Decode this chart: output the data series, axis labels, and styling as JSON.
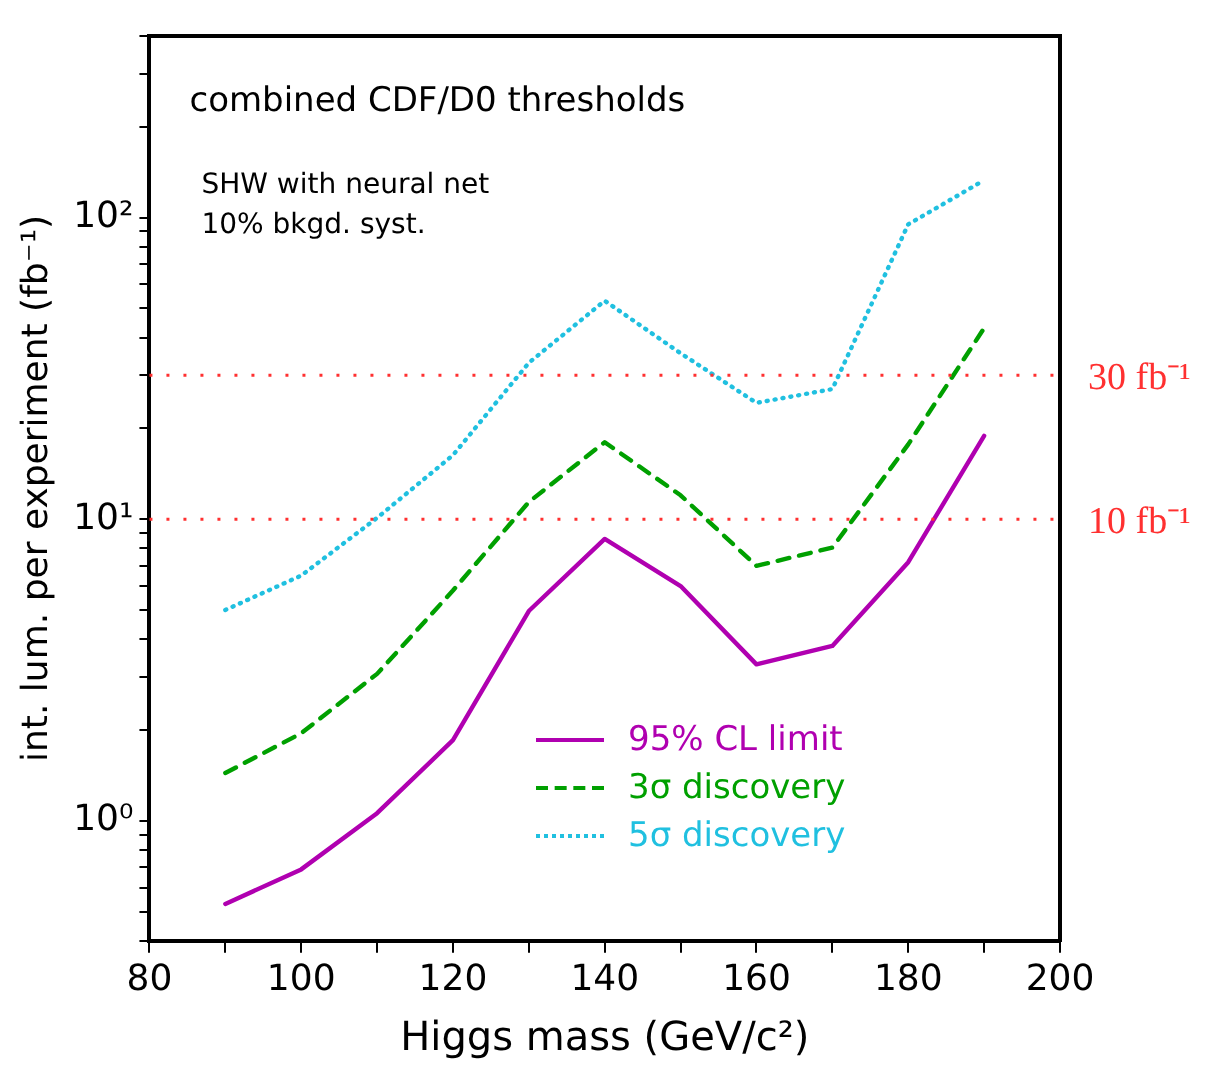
{
  "chart_data": {
    "type": "line",
    "xlabel": "Higgs mass (GeV/c²)",
    "ylabel": "int. lum. per experiment (fb⁻¹)",
    "annotations": [
      "combined CDF/D0 thresholds",
      "SHW with neural net",
      "10% bkgd. syst."
    ],
    "x": [
      90,
      100,
      110,
      120,
      130,
      140,
      150,
      160,
      170,
      180,
      190
    ],
    "series": [
      {
        "name": "95% CL limit",
        "color": "#b000b0",
        "line_style": "solid",
        "values": [
          0.53,
          0.69,
          1.06,
          1.85,
          4.96,
          8.6,
          6.0,
          3.3,
          3.8,
          7.2,
          18.9
        ]
      },
      {
        "name": "3σ discovery",
        "color": "#00a000",
        "line_style": "dashed",
        "values": [
          1.44,
          1.95,
          3.07,
          5.8,
          11.4,
          18,
          12,
          7.0,
          8.05,
          17.7,
          43
        ]
      },
      {
        "name": "5σ discovery",
        "color": "#20c0e0",
        "line_style": "dotted",
        "values": [
          5.0,
          6.5,
          10.1,
          16.3,
          33,
          53,
          35.5,
          24.3,
          27,
          95,
          133
        ]
      }
    ],
    "xlim": [
      80,
      200
    ],
    "xticks": [
      80,
      {
        "value": 90,
        "label": null
      },
      100,
      {
        "value": 110,
        "label": null
      },
      120,
      {
        "value": 130,
        "label": null
      },
      140,
      {
        "value": 150,
        "label": null
      },
      160,
      {
        "value": 170,
        "label": null
      },
      180,
      {
        "value": 190,
        "label": null
      },
      200
    ],
    "log": "y",
    "ylim": [
      0.4,
      400
    ],
    "yticks": [
      {
        "value": 0.4,
        "label": null
      },
      {
        "value": 0.5,
        "label": null
      },
      {
        "value": 0.6,
        "label": null
      },
      {
        "value": 0.7,
        "label": null
      },
      {
        "value": 0.8,
        "label": null
      },
      {
        "value": 0.9,
        "label": null
      },
      {
        "value": 1,
        "label": "10⁰"
      },
      {
        "value": 2,
        "label": null
      },
      {
        "value": 3,
        "label": null
      },
      {
        "value": 4,
        "label": null
      },
      {
        "value": 5,
        "label": null
      },
      {
        "value": 6,
        "label": null
      },
      {
        "value": 7,
        "label": null
      },
      {
        "value": 8,
        "label": null
      },
      {
        "value": 9,
        "label": null
      },
      {
        "value": 10,
        "label": "10¹"
      },
      {
        "value": 20,
        "label": null
      },
      {
        "value": 30,
        "label": null
      },
      {
        "value": 40,
        "label": null
      },
      {
        "value": 50,
        "label": null
      },
      {
        "value": 60,
        "label": null
      },
      {
        "value": 70,
        "label": null
      },
      {
        "value": 80,
        "label": null
      },
      {
        "value": 90,
        "label": null
      },
      {
        "value": 100,
        "label": "10²"
      },
      {
        "value": 200,
        "label": null
      },
      {
        "value": 300,
        "label": null
      },
      {
        "value": 400,
        "label": null
      }
    ],
    "ref_lines": [
      {
        "axis": "y",
        "value": 30,
        "label": "30 fb⁻¹",
        "color": "#ff3030",
        "line_style": "dotted"
      },
      {
        "axis": "y",
        "value": 10,
        "label": "10 fb⁻¹",
        "color": "#ff3030",
        "line_style": "dotted"
      }
    ],
    "grid": false,
    "legend": "bottom right",
    "marker": "none"
  }
}
